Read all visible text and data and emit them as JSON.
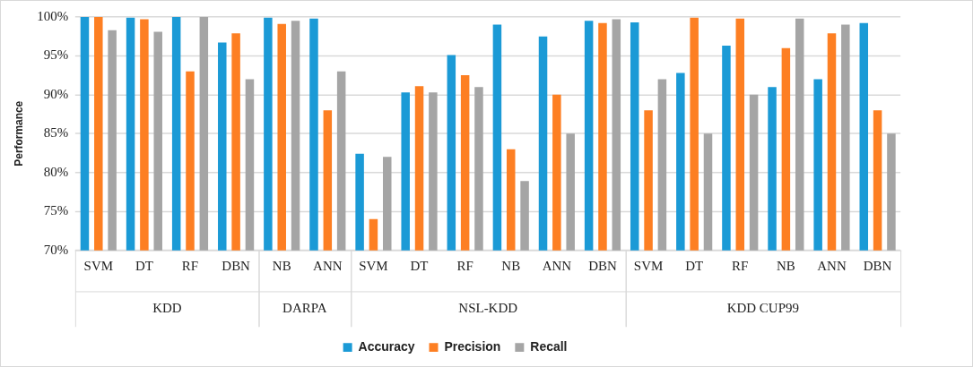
{
  "chart_data": {
    "type": "bar",
    "ylabel": "Performance",
    "categories": [
      "SVM",
      "DT",
      "RF",
      "DBN",
      "NB",
      "ANN",
      "SVM",
      "DT",
      "RF",
      "NB",
      "ANN",
      "DBN",
      "SVM",
      "DT",
      "RF",
      "NB",
      "ANN",
      "DBN"
    ],
    "series": [
      {
        "name": "Accuracy",
        "color": "#1b9ad6",
        "values": [
          100,
          99.9,
          100,
          96.7,
          99.9,
          99.8,
          82.4,
          90.3,
          95.1,
          99,
          97.5,
          99.5,
          99.3,
          92.8,
          96.3,
          91,
          92,
          99.2
        ]
      },
      {
        "name": "Precision",
        "color": "#fd7f23",
        "values": [
          100,
          99.7,
          93,
          97.9,
          99.1,
          88,
          74,
          91.1,
          92.5,
          83,
          90,
          99.2,
          88,
          99.9,
          99.8,
          96,
          97.9,
          88
        ]
      },
      {
        "name": "Recall",
        "color": "#a5a5a5",
        "values": [
          98.3,
          98.1,
          100,
          92,
          99.5,
          93,
          82,
          90.3,
          91,
          78.9,
          85,
          99.7,
          92,
          85,
          90,
          99.8,
          99,
          85
        ]
      }
    ],
    "annotations": [
      "KDD",
      "DARPA",
      "NSL-KDD",
      "KDD CUP99"
    ],
    "ylim": [
      70,
      100
    ],
    "yticks": [
      {
        "value": 70,
        "label": "70%"
      },
      {
        "value": 75,
        "label": "75%"
      },
      {
        "value": 80,
        "label": "80%"
      },
      {
        "value": 85,
        "label": "85%"
      },
      {
        "value": 90,
        "label": "90%"
      },
      {
        "value": 95,
        "label": "95%"
      },
      {
        "value": 100,
        "label": "100%"
      }
    ],
    "grid": "y",
    "legend": "bottom"
  }
}
